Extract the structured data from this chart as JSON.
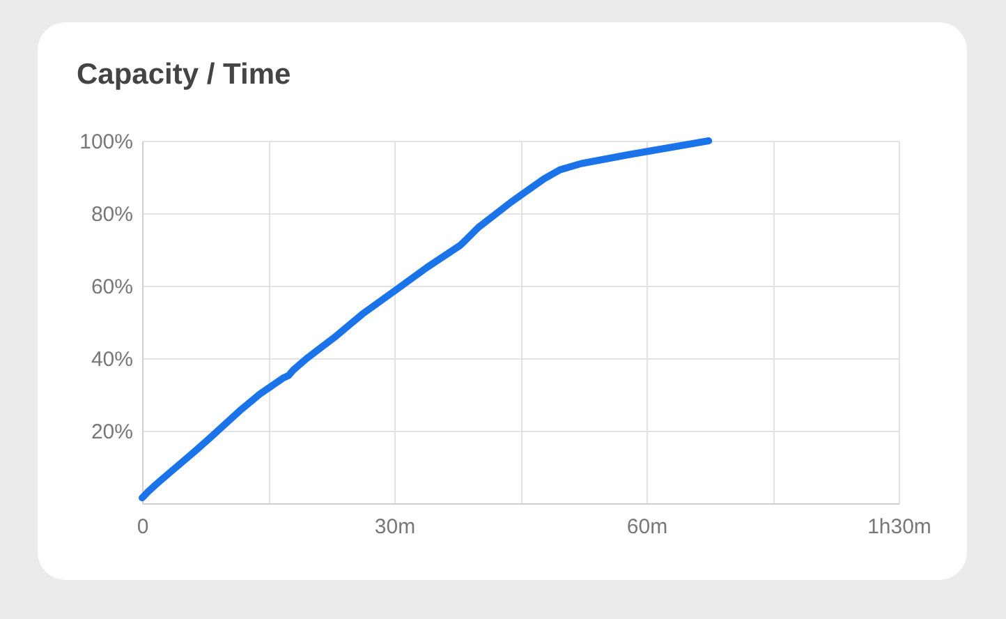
{
  "chart_data": {
    "type": "line",
    "title": "Capacity / Time",
    "x": [
      0,
      0.8,
      1.6,
      3.0,
      6.3,
      8.0,
      11.8,
      14.0,
      16.8,
      17.4,
      18.0,
      19.6,
      22.9,
      26.2,
      30.1,
      33.9,
      37.8,
      38.4,
      40.0,
      43.9,
      47.8,
      49.7,
      52.2,
      57.7,
      67.4
    ],
    "series": [
      {
        "color": "#1a73e8",
        "values": [
          1.5,
          3.4,
          5.1,
          7.9,
          14.4,
          17.9,
          25.9,
          30.1,
          34.6,
          35.2,
          36.8,
          40.0,
          45.8,
          52.2,
          58.7,
          65.1,
          71.1,
          72.4,
          76.1,
          83.1,
          89.5,
          92.0,
          93.7,
          96.1,
          100
        ]
      }
    ],
    "xlim": [
      0,
      90
    ],
    "xticks": [
      {
        "value": 0,
        "label": "0"
      },
      {
        "value": 15,
        "label": null
      },
      {
        "value": 30,
        "label": "30m"
      },
      {
        "value": 45,
        "label": null
      },
      {
        "value": 60,
        "label": "60m"
      },
      {
        "value": 75,
        "label": null
      },
      {
        "value": 90,
        "label": "1h30m"
      }
    ],
    "ylim": [
      0,
      100
    ],
    "yticks": [
      {
        "value": 20,
        "label": "20%"
      },
      {
        "value": 40,
        "label": "40%"
      },
      {
        "value": 60,
        "label": "60%"
      },
      {
        "value": 80,
        "label": "80%"
      },
      {
        "value": 100,
        "label": "100%"
      }
    ],
    "grid": true,
    "legend": false,
    "line_style": "solid"
  }
}
